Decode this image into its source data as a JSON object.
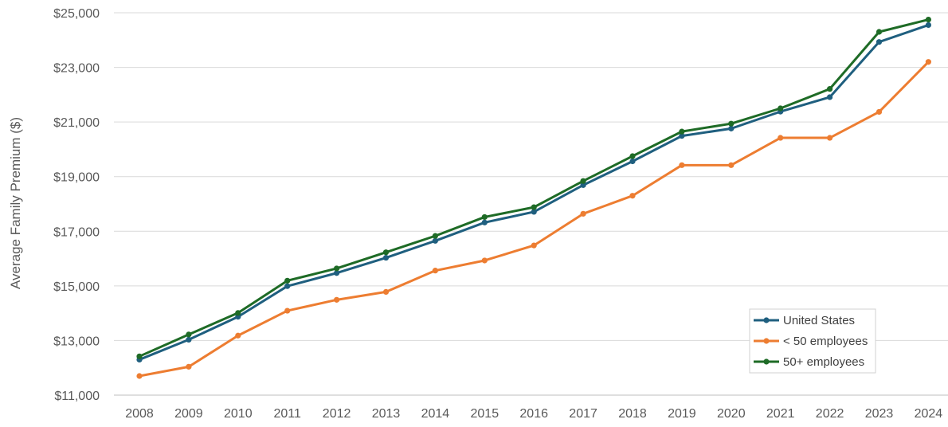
{
  "chart_data": {
    "type": "line",
    "ylabel": "Average Family Premium ($)",
    "xlabel": "",
    "ylim": [
      11000,
      25000
    ],
    "yticks": [
      11000,
      13000,
      15000,
      17000,
      19000,
      21000,
      23000,
      25000
    ],
    "ytick_labels": [
      "$11,000",
      "$13,000",
      "$15,000",
      "$17,000",
      "$19,000",
      "$21,000",
      "$23,000",
      "$25,000"
    ],
    "grid": true,
    "legend_position": "bottom-right",
    "categories": [
      "2008",
      "2009",
      "2010",
      "2011",
      "2012",
      "2013",
      "2014",
      "2015",
      "2016",
      "2017",
      "2018",
      "2019",
      "2020",
      "2021",
      "2022",
      "2023",
      "2024"
    ],
    "series": [
      {
        "name": "United States",
        "color": "#1f5f7f",
        "values": [
          12300,
          13030,
          13870,
          14990,
          15470,
          16030,
          16650,
          17320,
          17710,
          18690,
          19560,
          20490,
          20760,
          21380,
          21910,
          23930,
          24550
        ]
      },
      {
        "name": "< 50 employees",
        "color": "#ed7d31",
        "values": [
          11700,
          12040,
          13180,
          14090,
          14490,
          14780,
          15560,
          15930,
          16480,
          17640,
          18300,
          19420,
          19420,
          20420,
          20420,
          21370,
          23200
        ]
      },
      {
        "name": "50+ employees",
        "color": "#1e6b26",
        "values": [
          12420,
          13220,
          14010,
          15190,
          15640,
          16230,
          16830,
          17520,
          17880,
          18840,
          19750,
          20650,
          20940,
          21500,
          22210,
          24300,
          24750
        ]
      }
    ]
  }
}
